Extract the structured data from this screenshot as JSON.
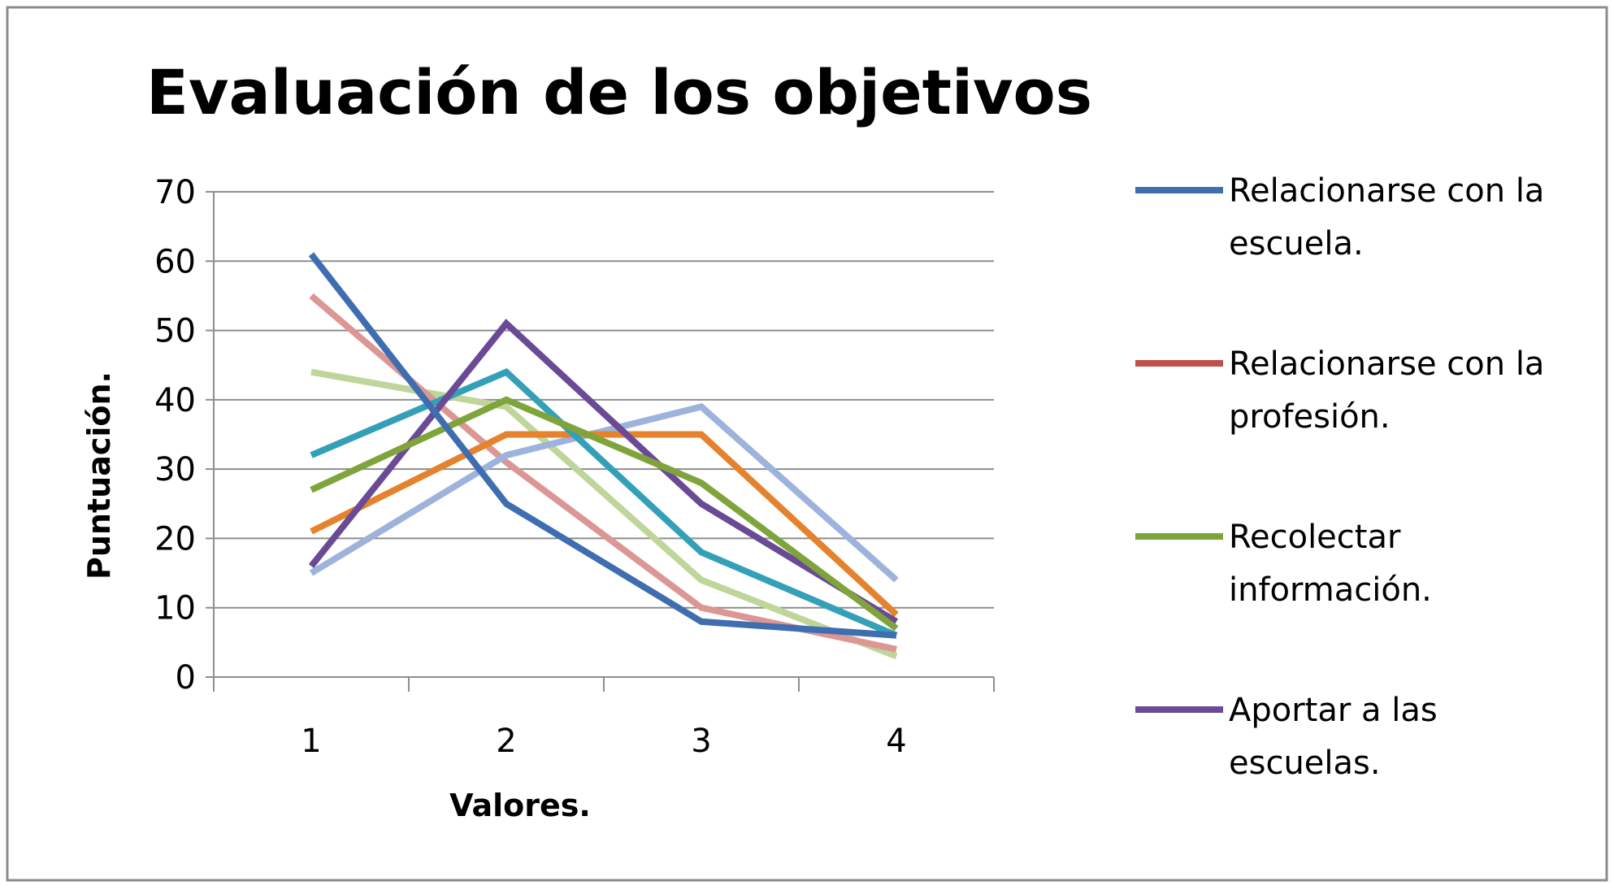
{
  "chart_data": {
    "type": "line",
    "title": "Evaluación de los objetivos",
    "xlabel": "Valores.",
    "ylabel": "Puntuación.",
    "categories": [
      "1",
      "2",
      "3",
      "4"
    ],
    "ylim": [
      0,
      70
    ],
    "yticks": [
      0,
      10,
      20,
      30,
      40,
      50,
      60,
      70
    ],
    "grid": true,
    "legend_position": "right",
    "series": [
      {
        "name": "Relacionarse con la escuela.",
        "legend_lines": [
          "Relacionarse con la",
          "escuela."
        ],
        "color": "#3f6eb0",
        "values": [
          61,
          25,
          8,
          6
        ]
      },
      {
        "name": "Relacionarse con la profesión.",
        "legend_lines": [
          "Relacionarse con la",
          "profesión."
        ],
        "color": "#c0504d",
        "values": [
          null,
          null,
          null,
          null
        ]
      },
      {
        "name": "Recolectar información.",
        "legend_lines": [
          "Recolectar",
          "información."
        ],
        "color": "#7ea43b",
        "values": [
          27,
          40,
          28,
          7
        ]
      },
      {
        "name": "Aportar a las escuelas.",
        "legend_lines": [
          "Aportar a las",
          "escuelas."
        ],
        "color": "#6a4a95",
        "values": [
          16,
          51,
          25,
          8
        ]
      },
      {
        "color": "#34a0b8",
        "values": [
          32,
          44,
          18,
          6
        ]
      },
      {
        "color": "#e5822e",
        "values": [
          21,
          35,
          35,
          9
        ]
      },
      {
        "color": "#9db3dc",
        "values": [
          15,
          32,
          39,
          14
        ]
      },
      {
        "color": "#dc9694",
        "values": [
          55,
          31,
          10,
          4
        ]
      },
      {
        "color": "#bfd59a",
        "values": [
          44,
          39,
          14,
          3
        ]
      }
    ]
  }
}
